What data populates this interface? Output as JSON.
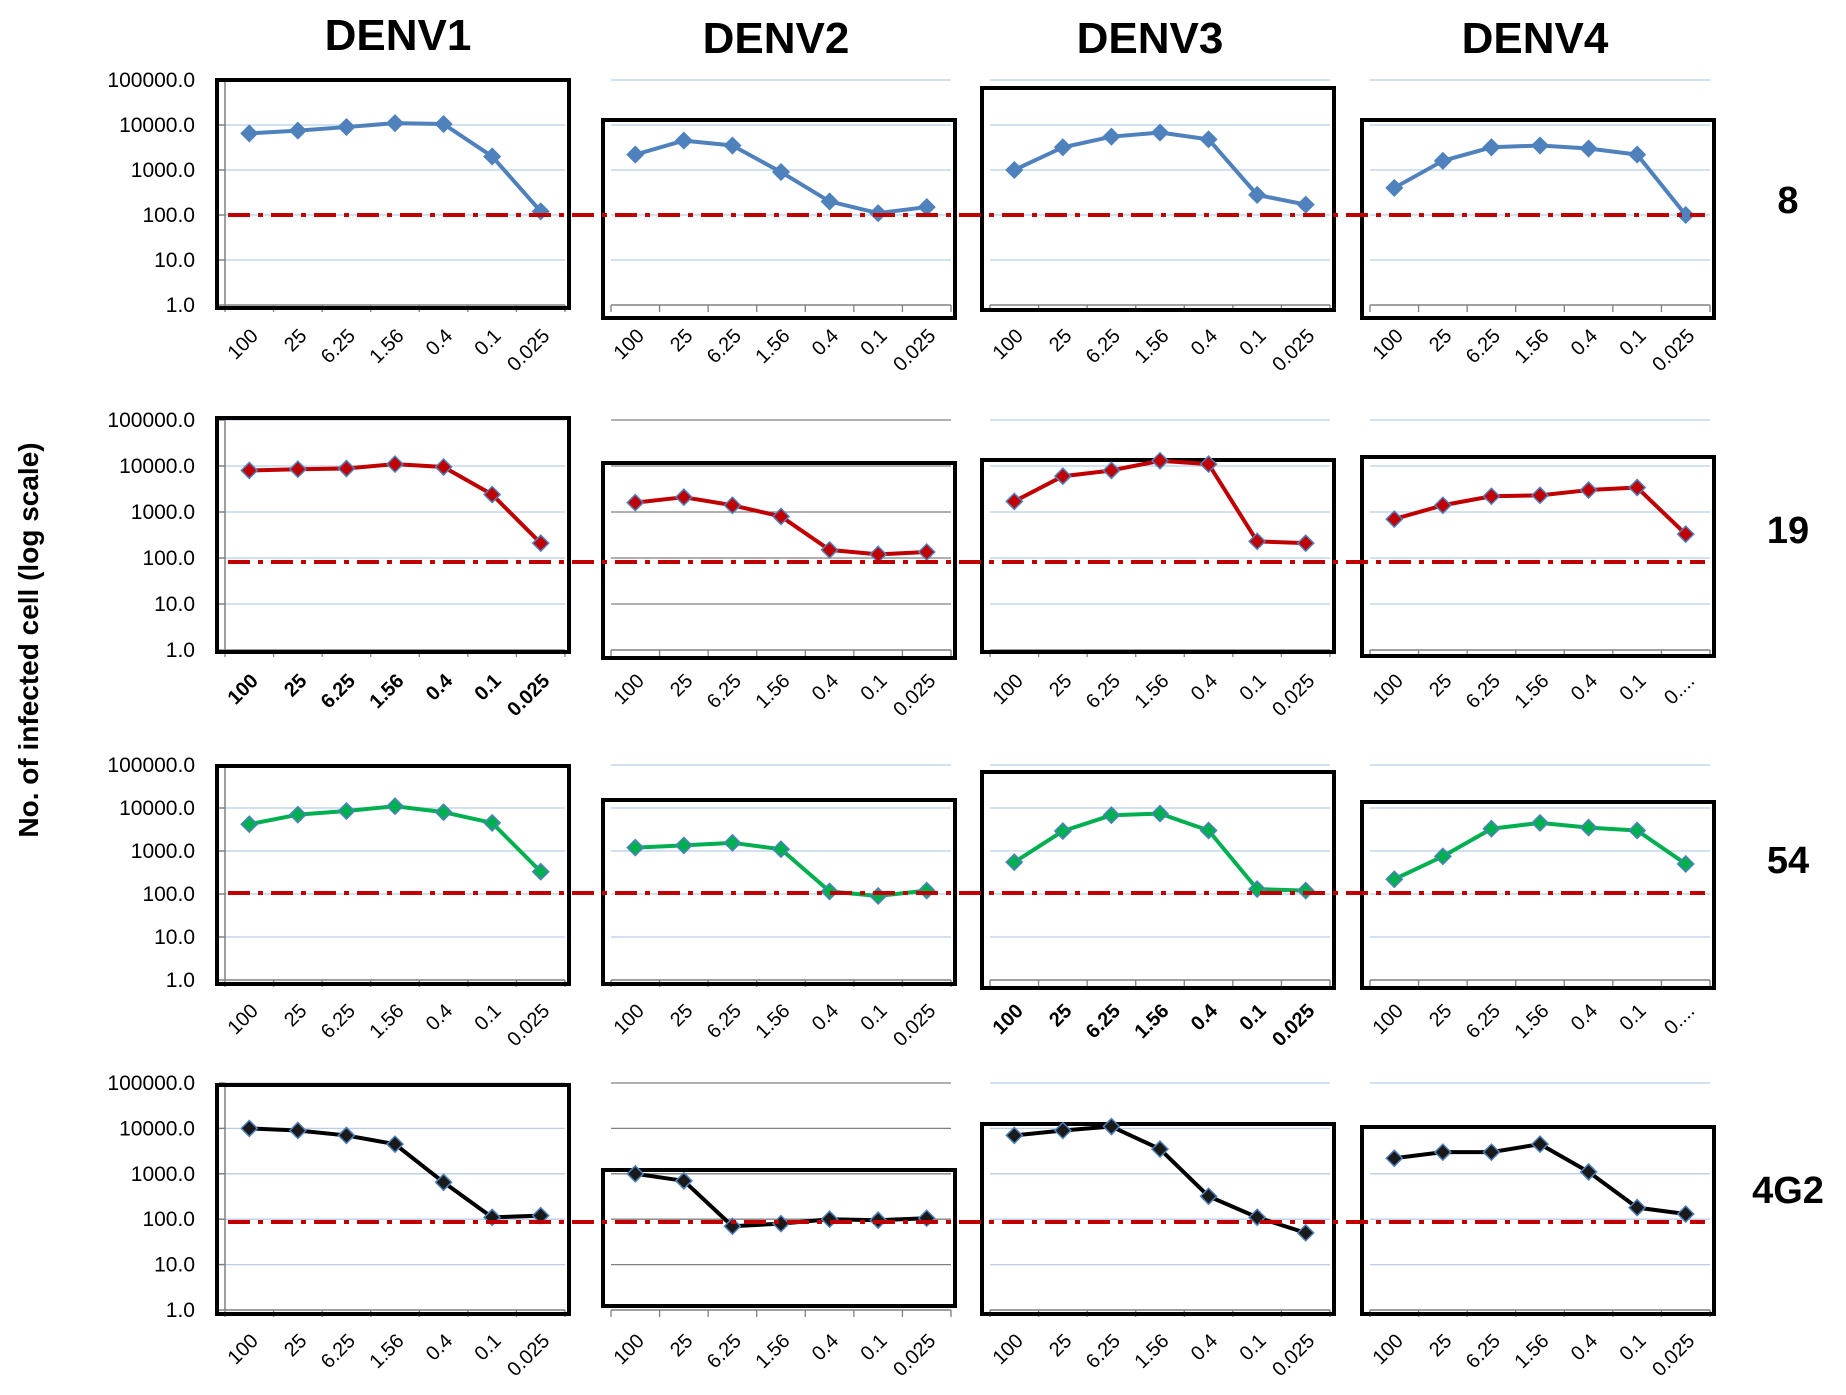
{
  "figure": {
    "column_headers": [
      "DENV1",
      "DENV2",
      "DENV3",
      "DENV4"
    ],
    "row_labels": [
      "8",
      "19",
      "54",
      "4G2"
    ],
    "y_axis_label": "No. of infected cell (log scale)",
    "y_tick_labels": [
      "100000.0",
      "10000.0",
      "1000.0",
      "100.0",
      "10.0",
      "1.0"
    ],
    "x_tick_labels": [
      "100",
      "25",
      "6.25",
      "1.56",
      "0.4",
      "0.1",
      "0.025"
    ],
    "truncated_last_tick": "0...."
  },
  "chart_data": [
    {
      "type": "line",
      "row": "8",
      "column": "DENV1",
      "x": [
        "100",
        "25",
        "6.25",
        "1.56",
        "0.4",
        "0.1",
        "0.025"
      ],
      "series": [
        {
          "values": [
            6500,
            7500,
            9000,
            11000,
            10500,
            2000,
            120
          ]
        }
      ],
      "yscale": "log",
      "ylim": [
        1,
        100000
      ],
      "threshold": 100,
      "color": "#4f81bd"
    },
    {
      "type": "line",
      "row": "8",
      "column": "DENV2",
      "x": [
        "100",
        "25",
        "6.25",
        "1.56",
        "0.4",
        "0.1",
        "0.025"
      ],
      "series": [
        {
          "values": [
            2200,
            4500,
            3500,
            900,
            200,
            110,
            150
          ]
        }
      ],
      "yscale": "log",
      "ylim": [
        1,
        100000
      ],
      "threshold": 100,
      "color": "#4f81bd"
    },
    {
      "type": "line",
      "row": "8",
      "column": "DENV3",
      "x": [
        "100",
        "25",
        "6.25",
        "1.56",
        "0.4",
        "0.1",
        "0.025"
      ],
      "series": [
        {
          "values": [
            1000,
            3200,
            5500,
            6800,
            4800,
            280,
            170
          ]
        }
      ],
      "yscale": "log",
      "ylim": [
        1,
        100000
      ],
      "threshold": 100,
      "color": "#4f81bd"
    },
    {
      "type": "line",
      "row": "8",
      "column": "DENV4",
      "x": [
        "100",
        "25",
        "6.25",
        "1.56",
        "0.4",
        "0.1",
        "0.025"
      ],
      "series": [
        {
          "values": [
            400,
            1600,
            3200,
            3500,
            3000,
            2200,
            100
          ]
        }
      ],
      "yscale": "log",
      "ylim": [
        1,
        100000
      ],
      "threshold": 100,
      "color": "#4f81bd"
    },
    {
      "type": "line",
      "row": "19",
      "column": "DENV1",
      "x": [
        "100",
        "25",
        "6.25",
        "1.56",
        "0.4",
        "0.1",
        "0.025"
      ],
      "series": [
        {
          "values": [
            8000,
            8500,
            8800,
            11000,
            9500,
            2400,
            210
          ]
        }
      ],
      "yscale": "log",
      "ylim": [
        1,
        100000
      ],
      "threshold": 80,
      "color": "#c00000",
      "bold_ticks": true
    },
    {
      "type": "line",
      "row": "19",
      "column": "DENV2",
      "x": [
        "100",
        "25",
        "6.25",
        "1.56",
        "0.4",
        "0.1",
        "0.025"
      ],
      "series": [
        {
          "values": [
            1600,
            2100,
            1400,
            800,
            150,
            120,
            135
          ]
        }
      ],
      "yscale": "log",
      "ylim": [
        1,
        100000
      ],
      "threshold": 80,
      "color": "#c00000"
    },
    {
      "type": "line",
      "row": "19",
      "column": "DENV3",
      "x": [
        "100",
        "25",
        "6.25",
        "1.56",
        "0.4",
        "0.1",
        "0.025"
      ],
      "series": [
        {
          "values": [
            1700,
            6000,
            8000,
            13000,
            11000,
            230,
            210
          ]
        }
      ],
      "yscale": "log",
      "ylim": [
        1,
        100000
      ],
      "threshold": 80,
      "color": "#c00000"
    },
    {
      "type": "line",
      "row": "19",
      "column": "DENV4",
      "x": [
        "100",
        "25",
        "6.25",
        "1.56",
        "0.4",
        "0.1",
        "0.025"
      ],
      "series": [
        {
          "values": [
            700,
            1400,
            2200,
            2300,
            3000,
            3400,
            330
          ]
        }
      ],
      "yscale": "log",
      "ylim": [
        1,
        100000
      ],
      "threshold": 80,
      "color": "#c00000",
      "truncate_last_tick": true
    },
    {
      "type": "line",
      "row": "54",
      "column": "DENV1",
      "x": [
        "100",
        "25",
        "6.25",
        "1.56",
        "0.4",
        "0.1",
        "0.025"
      ],
      "series": [
        {
          "values": [
            4200,
            7000,
            8500,
            11000,
            8000,
            4500,
            330
          ]
        }
      ],
      "yscale": "log",
      "ylim": [
        1,
        100000
      ],
      "threshold": 100,
      "color": "#00b050"
    },
    {
      "type": "line",
      "row": "54",
      "column": "DENV2",
      "x": [
        "100",
        "25",
        "6.25",
        "1.56",
        "0.4",
        "0.1",
        "0.025"
      ],
      "series": [
        {
          "values": [
            1200,
            1350,
            1550,
            1100,
            115,
            90,
            120
          ]
        }
      ],
      "yscale": "log",
      "ylim": [
        1,
        100000
      ],
      "threshold": 100,
      "color": "#00b050"
    },
    {
      "type": "line",
      "row": "54",
      "column": "DENV3",
      "x": [
        "100",
        "25",
        "6.25",
        "1.56",
        "0.4",
        "0.1",
        "0.025"
      ],
      "series": [
        {
          "values": [
            550,
            2900,
            6800,
            7400,
            3000,
            130,
            120
          ]
        }
      ],
      "yscale": "log",
      "ylim": [
        1,
        100000
      ],
      "threshold": 100,
      "color": "#00b050",
      "bold_ticks": true
    },
    {
      "type": "line",
      "row": "54",
      "column": "DENV4",
      "x": [
        "100",
        "25",
        "6.25",
        "1.56",
        "0.4",
        "0.1",
        "0.025"
      ],
      "series": [
        {
          "values": [
            220,
            750,
            3300,
            4500,
            3500,
            3000,
            500
          ]
        }
      ],
      "yscale": "log",
      "ylim": [
        1,
        100000
      ],
      "threshold": 100,
      "color": "#00b050",
      "truncate_last_tick": true
    },
    {
      "type": "line",
      "row": "4G2",
      "column": "DENV1",
      "x": [
        "100",
        "25",
        "6.25",
        "1.56",
        "0.4",
        "0.1",
        "0.025"
      ],
      "series": [
        {
          "values": [
            10000,
            9000,
            7000,
            4500,
            650,
            110,
            120
          ]
        }
      ],
      "yscale": "log",
      "ylim": [
        1,
        100000
      ],
      "threshold": 80,
      "color": "#000000"
    },
    {
      "type": "line",
      "row": "4G2",
      "column": "DENV2",
      "x": [
        "100",
        "25",
        "6.25",
        "1.56",
        "0.4",
        "0.1",
        "0.025"
      ],
      "series": [
        {
          "values": [
            1000,
            700,
            70,
            80,
            100,
            95,
            105
          ]
        }
      ],
      "yscale": "log",
      "ylim": [
        1,
        100000
      ],
      "threshold": 80,
      "color": "#000000"
    },
    {
      "type": "line",
      "row": "4G2",
      "column": "DENV3",
      "x": [
        "100",
        "25",
        "6.25",
        "1.56",
        "0.4",
        "0.1",
        "0.025"
      ],
      "series": [
        {
          "values": [
            7000,
            9000,
            11000,
            3500,
            320,
            110,
            50
          ]
        }
      ],
      "yscale": "log",
      "ylim": [
        1,
        100000
      ],
      "threshold": 80,
      "color": "#000000"
    },
    {
      "type": "line",
      "row": "4G2",
      "column": "DENV4",
      "x": [
        "100",
        "25",
        "6.25",
        "1.56",
        "0.4",
        "0.1",
        "0.025"
      ],
      "series": [
        {
          "values": [
            2200,
            3000,
            3000,
            4500,
            1100,
            180,
            130
          ]
        }
      ],
      "yscale": "log",
      "ylim": [
        1,
        100000
      ],
      "threshold": 80,
      "color": "#000000"
    }
  ]
}
